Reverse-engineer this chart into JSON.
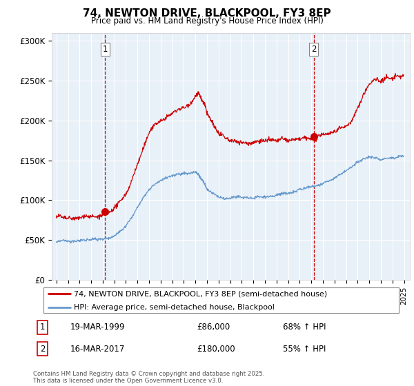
{
  "title_line1": "74, NEWTON DRIVE, BLACKPOOL, FY3 8EP",
  "title_line2": "Price paid vs. HM Land Registry's House Price Index (HPI)",
  "legend_line1": "74, NEWTON DRIVE, BLACKPOOL, FY3 8EP (semi-detached house)",
  "legend_line2": "HPI: Average price, semi-detached house, Blackpool",
  "footer": "Contains HM Land Registry data © Crown copyright and database right 2025.\nThis data is licensed under the Open Government Licence v3.0.",
  "red_color": "#cc0000",
  "blue_color": "#6699cc",
  "chart_bg": "#e8f0f8",
  "annotation1_date": "19-MAR-1999",
  "annotation1_price": "£86,000",
  "annotation1_hpi": "68% ↑ HPI",
  "annotation2_date": "16-MAR-2017",
  "annotation2_price": "£180,000",
  "annotation2_hpi": "55% ↑ HPI",
  "ylim_min": 0,
  "ylim_max": 310000,
  "yticks": [
    0,
    50000,
    100000,
    150000,
    200000,
    250000,
    300000
  ],
  "ytick_labels": [
    "£0",
    "£50K",
    "£100K",
    "£150K",
    "£200K",
    "£250K",
    "£300K"
  ],
  "t1": 1999.21,
  "t2": 2017.21,
  "t1_price": 86000,
  "t2_price": 180000,
  "red_points": [
    [
      1995.0,
      80000
    ],
    [
      1995.5,
      78000
    ],
    [
      1996.0,
      79000
    ],
    [
      1996.5,
      80000
    ],
    [
      1997.0,
      81000
    ],
    [
      1997.5,
      83000
    ],
    [
      1998.0,
      82000
    ],
    [
      1998.5,
      83000
    ],
    [
      1999.0,
      84000
    ],
    [
      1999.21,
      86000
    ],
    [
      1999.5,
      88000
    ],
    [
      2000.0,
      93000
    ],
    [
      2000.5,
      100000
    ],
    [
      2001.0,
      110000
    ],
    [
      2001.5,
      125000
    ],
    [
      2002.0,
      145000
    ],
    [
      2002.5,
      165000
    ],
    [
      2003.0,
      185000
    ],
    [
      2003.5,
      197000
    ],
    [
      2004.0,
      200000
    ],
    [
      2004.5,
      205000
    ],
    [
      2005.0,
      208000
    ],
    [
      2005.5,
      212000
    ],
    [
      2006.0,
      215000
    ],
    [
      2006.5,
      220000
    ],
    [
      2007.0,
      228000
    ],
    [
      2007.25,
      232000
    ],
    [
      2007.5,
      225000
    ],
    [
      2007.75,
      218000
    ],
    [
      2008.0,
      205000
    ],
    [
      2008.25,
      200000
    ],
    [
      2008.5,
      195000
    ],
    [
      2008.75,
      188000
    ],
    [
      2009.0,
      182000
    ],
    [
      2009.5,
      178000
    ],
    [
      2010.0,
      175000
    ],
    [
      2010.5,
      177000
    ],
    [
      2011.0,
      175000
    ],
    [
      2011.5,
      174000
    ],
    [
      2012.0,
      175000
    ],
    [
      2012.5,
      177000
    ],
    [
      2013.0,
      176000
    ],
    [
      2013.5,
      175000
    ],
    [
      2014.0,
      176000
    ],
    [
      2014.5,
      178000
    ],
    [
      2015.0,
      177000
    ],
    [
      2015.5,
      178000
    ],
    [
      2016.0,
      179000
    ],
    [
      2016.5,
      181000
    ],
    [
      2017.0,
      180000
    ],
    [
      2017.21,
      180000
    ],
    [
      2017.5,
      182000
    ],
    [
      2018.0,
      185000
    ],
    [
      2018.5,
      186000
    ],
    [
      2019.0,
      188000
    ],
    [
      2019.5,
      192000
    ],
    [
      2020.0,
      193000
    ],
    [
      2020.5,
      200000
    ],
    [
      2021.0,
      215000
    ],
    [
      2021.5,
      230000
    ],
    [
      2022.0,
      240000
    ],
    [
      2022.5,
      245000
    ],
    [
      2023.0,
      242000
    ],
    [
      2023.5,
      248000
    ],
    [
      2024.0,
      245000
    ],
    [
      2024.5,
      248000
    ],
    [
      2025.0,
      250000
    ]
  ],
  "blue_points": [
    [
      1995.0,
      48000
    ],
    [
      1995.5,
      48500
    ],
    [
      1996.0,
      49000
    ],
    [
      1996.5,
      49500
    ],
    [
      1997.0,
      50000
    ],
    [
      1997.5,
      51000
    ],
    [
      1998.0,
      52000
    ],
    [
      1998.5,
      52500
    ],
    [
      1999.0,
      53000
    ],
    [
      1999.5,
      54000
    ],
    [
      2000.0,
      57000
    ],
    [
      2000.5,
      62000
    ],
    [
      2001.0,
      70000
    ],
    [
      2001.5,
      80000
    ],
    [
      2002.0,
      93000
    ],
    [
      2002.5,
      105000
    ],
    [
      2003.0,
      115000
    ],
    [
      2003.5,
      122000
    ],
    [
      2004.0,
      126000
    ],
    [
      2004.5,
      130000
    ],
    [
      2005.0,
      133000
    ],
    [
      2005.5,
      135000
    ],
    [
      2006.0,
      134000
    ],
    [
      2006.5,
      133000
    ],
    [
      2007.0,
      135000
    ],
    [
      2007.25,
      132000
    ],
    [
      2007.5,
      127000
    ],
    [
      2007.75,
      122000
    ],
    [
      2008.0,
      116000
    ],
    [
      2008.5,
      110000
    ],
    [
      2009.0,
      106000
    ],
    [
      2009.5,
      103000
    ],
    [
      2010.0,
      104000
    ],
    [
      2010.5,
      105000
    ],
    [
      2011.0,
      104000
    ],
    [
      2011.5,
      103000
    ],
    [
      2012.0,
      103000
    ],
    [
      2012.5,
      104000
    ],
    [
      2013.0,
      104000
    ],
    [
      2013.5,
      105000
    ],
    [
      2014.0,
      106000
    ],
    [
      2014.5,
      108000
    ],
    [
      2015.0,
      109000
    ],
    [
      2015.5,
      110000
    ],
    [
      2016.0,
      112000
    ],
    [
      2016.5,
      114000
    ],
    [
      2017.0,
      116000
    ],
    [
      2017.5,
      118000
    ],
    [
      2018.0,
      120000
    ],
    [
      2018.5,
      122000
    ],
    [
      2019.0,
      124000
    ],
    [
      2019.5,
      128000
    ],
    [
      2020.0,
      132000
    ],
    [
      2020.5,
      138000
    ],
    [
      2021.0,
      145000
    ],
    [
      2021.5,
      150000
    ],
    [
      2022.0,
      152000
    ],
    [
      2022.5,
      150000
    ],
    [
      2023.0,
      148000
    ],
    [
      2023.5,
      150000
    ],
    [
      2024.0,
      152000
    ],
    [
      2024.5,
      154000
    ],
    [
      2025.0,
      155000
    ]
  ]
}
